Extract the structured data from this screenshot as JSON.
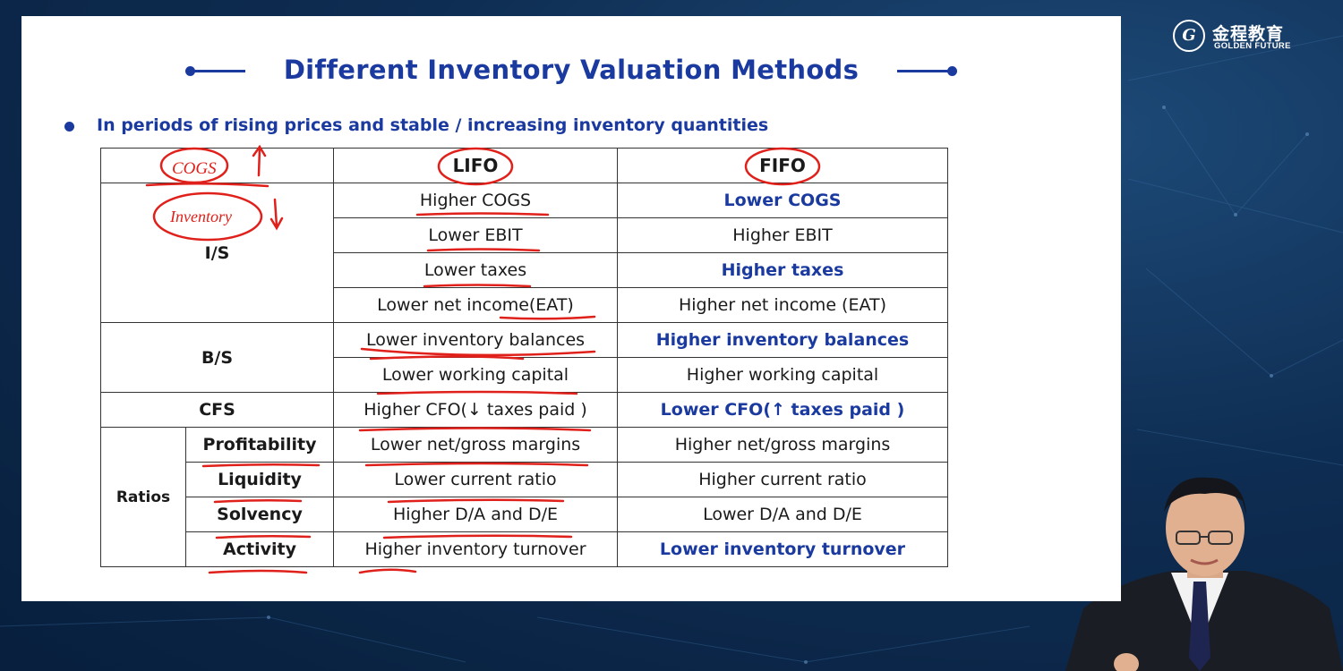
{
  "slide": {
    "title": "Different Inventory Valuation Methods",
    "bullet": "In periods of rising prices and stable / increasing inventory quantities"
  },
  "logo": {
    "cn_text": "金程教育",
    "en_text": "GOLDEN FUTURE"
  },
  "table": {
    "headers": {
      "lifo": "LIFO",
      "fifo": "FIFO"
    },
    "sections": {
      "is": "I/S",
      "bs": "B/S",
      "cfs": "CFS",
      "ratios": "Ratios"
    },
    "ratio_labels": [
      "Profitability",
      "Liquidity",
      "Solvency",
      "Activity"
    ],
    "rows": [
      {
        "lifo": "Higher COGS",
        "fifo": "Lower COGS",
        "fifo_bold": true
      },
      {
        "lifo": "Lower EBIT",
        "fifo": "Higher EBIT",
        "fifo_bold": false
      },
      {
        "lifo": "Lower taxes",
        "fifo": "Higher taxes",
        "fifo_bold": true
      },
      {
        "lifo": "Lower net income(EAT)",
        "fifo": "Higher net income (EAT)",
        "fifo_bold": false
      },
      {
        "lifo": "Lower inventory balances",
        "fifo": "Higher inventory balances",
        "fifo_bold": true
      },
      {
        "lifo": "Lower working capital",
        "fifo": "Higher working capital",
        "fifo_bold": false
      },
      {
        "lifo": "Higher CFO(↓ taxes paid )",
        "fifo": "Lower CFO(↑ taxes paid )",
        "fifo_bold": true
      },
      {
        "lifo": "Lower net/gross margins",
        "fifo": "Higher net/gross margins",
        "fifo_bold": false
      },
      {
        "lifo": "Lower current ratio",
        "fifo": "Higher current ratio",
        "fifo_bold": false
      },
      {
        "lifo": "Higher D/A and D/E",
        "fifo": "Lower D/A and D/E",
        "fifo_bold": false
      },
      {
        "lifo": "Higher inventory turnover",
        "fifo": "Lower inventory turnover",
        "fifo_bold": true
      }
    ]
  },
  "annotations": {
    "handwriting": [
      "COGS",
      "Inventory"
    ],
    "colors": {
      "ink": "#e0201a",
      "title": "#1a3aa0"
    }
  }
}
